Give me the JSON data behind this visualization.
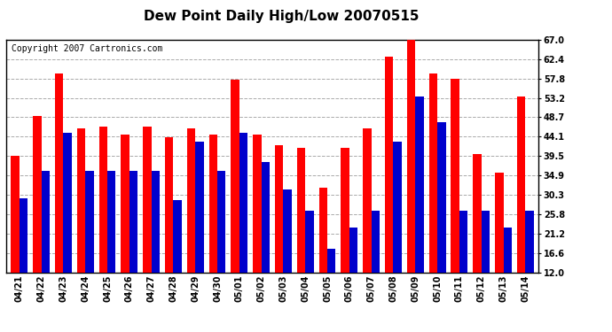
{
  "title": "Dew Point Daily High/Low 20070515",
  "copyright": "Copyright 2007 Cartronics.com",
  "background_color": "#ffffff",
  "plot_bg_color": "#ffffff",
  "grid_color": "#aaaaaa",
  "bar_width": 0.38,
  "ylim": [
    12.0,
    67.0
  ],
  "yticks": [
    12.0,
    16.6,
    21.2,
    25.8,
    30.3,
    34.9,
    39.5,
    44.1,
    48.7,
    53.2,
    57.8,
    62.4,
    67.0
  ],
  "dates": [
    "04/21",
    "04/22",
    "04/23",
    "04/24",
    "04/25",
    "04/26",
    "04/27",
    "04/28",
    "04/29",
    "04/30",
    "05/01",
    "05/02",
    "05/03",
    "05/04",
    "05/05",
    "05/06",
    "05/07",
    "05/08",
    "05/09",
    "05/10",
    "05/11",
    "05/12",
    "05/13",
    "05/14"
  ],
  "high_values": [
    39.5,
    49.0,
    59.0,
    46.0,
    46.5,
    44.5,
    46.5,
    44.0,
    46.0,
    44.5,
    57.5,
    44.5,
    42.0,
    41.5,
    32.0,
    41.5,
    46.0,
    63.0,
    67.0,
    59.0,
    57.8,
    40.0,
    35.5,
    53.5
  ],
  "low_values": [
    29.5,
    36.0,
    45.0,
    36.0,
    36.0,
    36.0,
    36.0,
    29.0,
    43.0,
    36.0,
    45.0,
    38.0,
    31.5,
    26.5,
    17.5,
    22.5,
    26.5,
    43.0,
    53.5,
    47.5,
    26.5,
    26.5,
    22.5,
    26.5
  ],
  "high_color": "#ff0000",
  "low_color": "#0000cc",
  "title_fontsize": 11,
  "copyright_fontsize": 7,
  "tick_fontsize": 7,
  "outer_border_color": "#000000",
  "fig_width": 6.9,
  "fig_height": 3.75,
  "dpi": 100
}
